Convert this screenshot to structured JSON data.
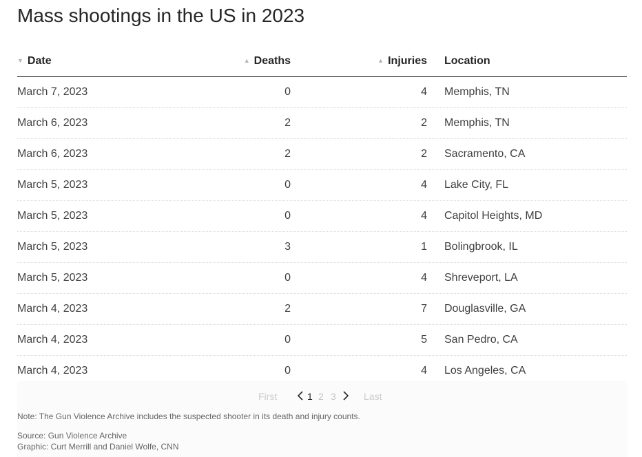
{
  "title": "Mass shootings in the US in 2023",
  "chart_data": {
    "type": "table",
    "title": "Mass shootings in the US in 2023",
    "columns": [
      "Date",
      "Deaths",
      "Injuries",
      "Location"
    ],
    "sort_column": "Date",
    "sort_direction": "descending",
    "rows": [
      [
        "March 7, 2023",
        "0",
        "4",
        "Memphis, TN"
      ],
      [
        "March 6, 2023",
        "2",
        "2",
        "Memphis, TN"
      ],
      [
        "March 6, 2023",
        "2",
        "2",
        "Sacramento, CA"
      ],
      [
        "March 5, 2023",
        "0",
        "4",
        "Lake City, FL"
      ],
      [
        "March 5, 2023",
        "0",
        "4",
        "Capitol Heights, MD"
      ],
      [
        "March 5, 2023",
        "3",
        "1",
        "Bolingbrook, IL"
      ],
      [
        "March 5, 2023",
        "0",
        "4",
        "Shreveport, LA"
      ],
      [
        "March 4, 2023",
        "2",
        "7",
        "Douglasville, GA"
      ],
      [
        "March 4, 2023",
        "0",
        "5",
        "San Pedro, CA"
      ],
      [
        "March 4, 2023",
        "0",
        "4",
        "Los Angeles, CA"
      ]
    ]
  },
  "pagination": {
    "first_label": "First",
    "prev_icon": "chevron-left-icon",
    "pages": [
      "1",
      "2",
      "3"
    ],
    "current_page": "1",
    "next_icon": "chevron-right-icon",
    "last_label": "Last"
  },
  "note": "Note: The Gun Violence Archive includes the suspected shooter in its death and injury counts.",
  "source": "Source: Gun Violence Archive",
  "credit": "Graphic: Curt Merrill and Daniel Wolfe, CNN",
  "colors": {
    "title": "#262626",
    "text": "#404040",
    "muted": "#666666",
    "sort_arrow": "#b3b3b3",
    "footer_bg": "#fbfbfb"
  }
}
